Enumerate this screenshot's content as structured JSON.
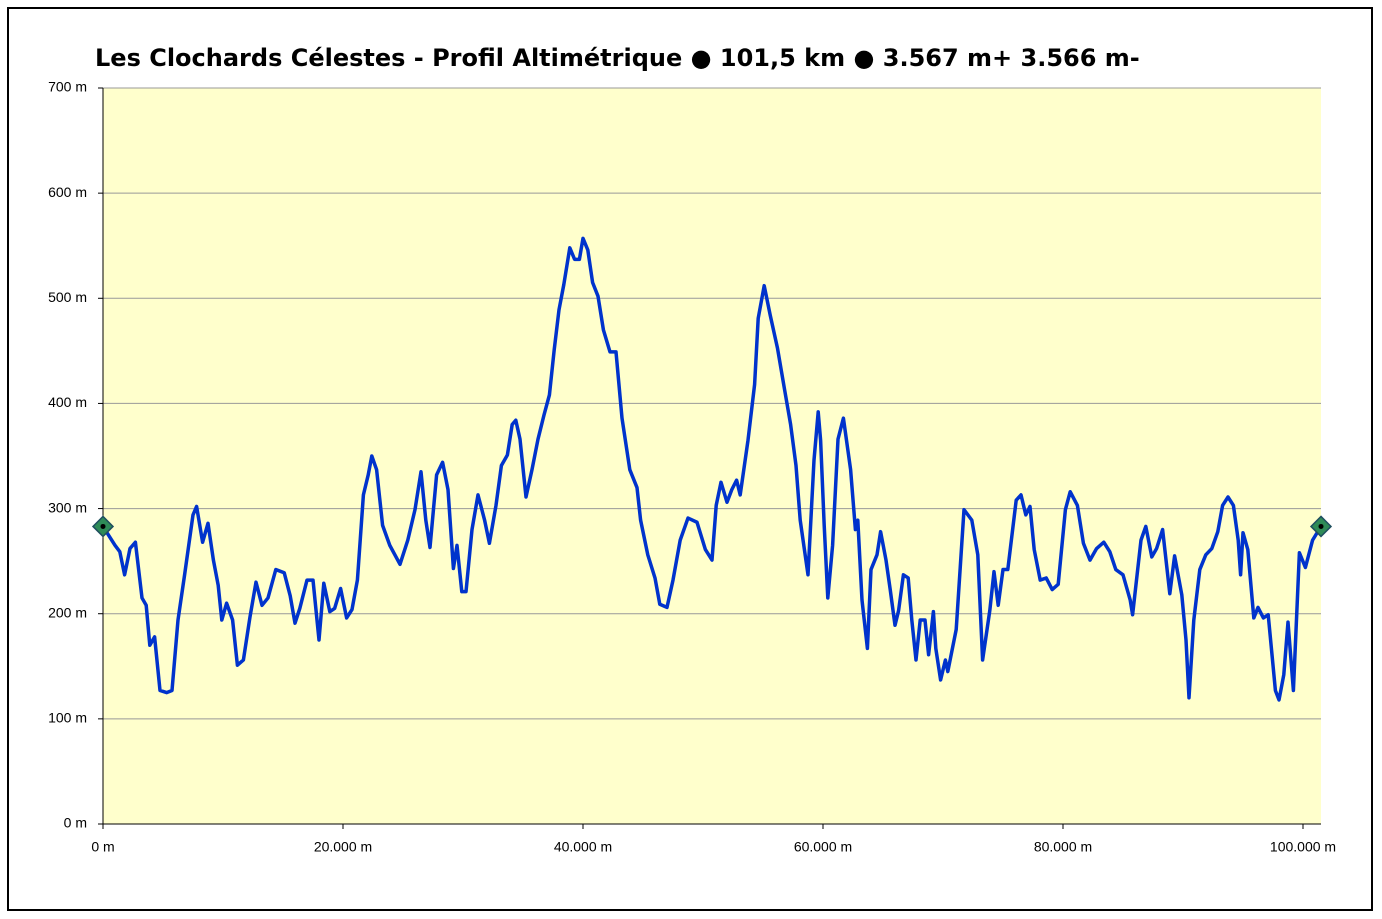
{
  "chart_data": {
    "type": "line",
    "title": "Les Clochards Célestes - Profil Altimétrique  ●  101,5 km  ●  3.567 m+  3.566 m-",
    "xlim": [
      0,
      101500
    ],
    "ylim": [
      0,
      700
    ],
    "grid": true,
    "background": "#ffffcc",
    "xticks": [
      {
        "value": 0,
        "label": "0 m"
      },
      {
        "value": 20000,
        "label": "20.000 m"
      },
      {
        "value": 40000,
        "label": "40.000 m"
      },
      {
        "value": 60000,
        "label": "60.000 m"
      },
      {
        "value": 80000,
        "label": "80.000 m"
      },
      {
        "value": 100000,
        "label": "100.000 m"
      }
    ],
    "yticks": [
      {
        "value": 0,
        "label": "0 m"
      },
      {
        "value": 100,
        "label": "100 m"
      },
      {
        "value": 200,
        "label": "200 m"
      },
      {
        "value": 300,
        "label": "300 m"
      },
      {
        "value": 400,
        "label": "400 m"
      },
      {
        "value": 500,
        "label": "500 m"
      },
      {
        "value": 600,
        "label": "600 m"
      },
      {
        "value": 700,
        "label": "700 m"
      }
    ],
    "series": [
      {
        "color": "#0033cc",
        "marker": "none",
        "x": [
          0,
          1000,
          1400,
          1800,
          2250,
          2700,
          3250,
          3600,
          3900,
          4300,
          4750,
          5300,
          5750,
          6250,
          6800,
          7500,
          7800,
          8300,
          8750,
          9200,
          9600,
          9900,
          10300,
          10800,
          11200,
          11700,
          12250,
          12750,
          13250,
          13750,
          14400,
          15100,
          15600,
          16000,
          16400,
          17000,
          17500,
          18000,
          18400,
          18900,
          19300,
          19800,
          20300,
          20750,
          21200,
          21700,
          22100,
          22400,
          22800,
          23300,
          23900,
          24750,
          25400,
          26000,
          26500,
          26900,
          27250,
          27800,
          28300,
          28750,
          29200,
          29500,
          29900,
          30250,
          30750,
          31250,
          31800,
          32200,
          32750,
          33200,
          33700,
          34100,
          34400,
          34750,
          35250,
          35750,
          36250,
          36750,
          37200,
          37600,
          38000,
          38400,
          38900,
          39300,
          39700,
          40000,
          40400,
          40800,
          41250,
          41700,
          42250,
          42750,
          43250,
          43900,
          44500,
          44800,
          45400,
          46000,
          46400,
          47000,
          47500,
          48100,
          48750,
          49500,
          50200,
          50750,
          51100,
          51500,
          52000,
          52400,
          52800,
          53100,
          53750,
          54300,
          54600,
          55100,
          55600,
          56200,
          56800,
          57300,
          57750,
          58100,
          58750,
          59250,
          59600,
          59800,
          60100,
          60400,
          60800,
          61250,
          61700,
          62300,
          62700,
          62900,
          63250,
          63700,
          64000,
          64500,
          64800,
          65250,
          65600,
          66000,
          66300,
          66700,
          67100,
          67400,
          67750,
          68100,
          68500,
          68800,
          69200,
          69400,
          69800,
          70200,
          70400,
          71100,
          71750,
          72400,
          72900,
          73300,
          73900,
          74250,
          74600,
          75000,
          75400,
          76100,
          76500,
          76900,
          77250,
          77600,
          78100,
          78600,
          79100,
          79600,
          80200,
          80600,
          81200,
          81700,
          82250,
          82800,
          83400,
          83900,
          84400,
          85000,
          85600,
          85800,
          86500,
          86900,
          87400,
          87800,
          88300,
          88900,
          89300,
          89900,
          90250,
          90500,
          90900,
          91400,
          91900,
          92400,
          92900,
          93300,
          93750,
          94200,
          94600,
          94800,
          95000,
          95400,
          95900,
          96250,
          96700,
          97100,
          97700,
          98000,
          98400,
          98750,
          99200,
          99700,
          100200,
          100800,
          101500
        ],
        "values": [
          283,
          265,
          259,
          237,
          262,
          268,
          215,
          208,
          170,
          178,
          127,
          125,
          127,
          194,
          237,
          294,
          302,
          268,
          286,
          251,
          227,
          194,
          210,
          194,
          151,
          156,
          197,
          230,
          208,
          215,
          242,
          239,
          217,
          191,
          205,
          232,
          232,
          175,
          229,
          202,
          205,
          224,
          196,
          204,
          232,
          313,
          332,
          350,
          337,
          284,
          265,
          247,
          270,
          299,
          335,
          289,
          263,
          332,
          344,
          318,
          243,
          265,
          221,
          221,
          280,
          313,
          289,
          267,
          303,
          341,
          351,
          380,
          384,
          366,
          311,
          337,
          366,
          389,
          408,
          451,
          489,
          513,
          548,
          537,
          537,
          557,
          546,
          515,
          502,
          470,
          449,
          449,
          386,
          337,
          320,
          289,
          256,
          234,
          209,
          206,
          232,
          270,
          291,
          287,
          261,
          251,
          303,
          325,
          306,
          318,
          327,
          313,
          365,
          418,
          481,
          512,
          484,
          453,
          413,
          380,
          341,
          289,
          237,
          346,
          392,
          365,
          284,
          215,
          265,
          366,
          386,
          337,
          280,
          289,
          213,
          167,
          242,
          256,
          278,
          251,
          223,
          189,
          203,
          237,
          234,
          194,
          156,
          194,
          194,
          161,
          202,
          167,
          137,
          156,
          145,
          185,
          299,
          289,
          256,
          156,
          203,
          240,
          208,
          242,
          242,
          308,
          313,
          294,
          302,
          261,
          232,
          234,
          223,
          228,
          299,
          316,
          303,
          267,
          251,
          262,
          268,
          259,
          242,
          237,
          213,
          199,
          270,
          283,
          254,
          262,
          280,
          219,
          255,
          218,
          175,
          120,
          194,
          242,
          256,
          262,
          278,
          303,
          311,
          303,
          270,
          237,
          277,
          261,
          196,
          206,
          196,
          199,
          127,
          118,
          142,
          192,
          127,
          258,
          244,
          270,
          283
        ]
      },
      {
        "color": "#2e8b57",
        "marker": "diamond",
        "x": [
          0,
          101500
        ],
        "values": [
          283,
          283
        ]
      }
    ]
  }
}
